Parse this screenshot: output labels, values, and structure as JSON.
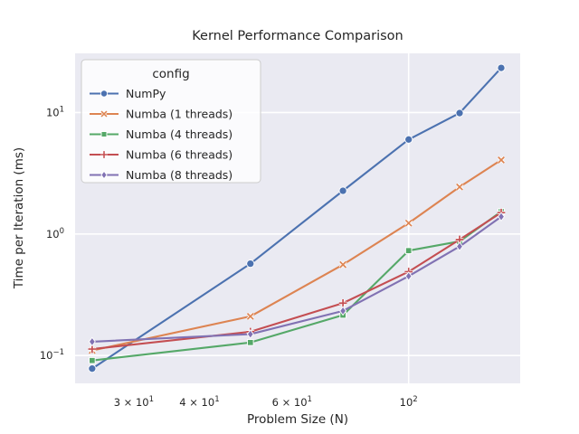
{
  "chart_data": {
    "type": "line",
    "title": "Kernel Performance Comparison",
    "xlabel": "Problem Size (N)",
    "ylabel": "Time per Iteration (ms)",
    "x_scale": "log",
    "y_scale": "log",
    "grid": "major",
    "x": [
      25,
      50,
      75,
      100,
      125,
      150
    ],
    "series": [
      {
        "name": "NumPy",
        "color": "#4C72B0",
        "marker": "circle",
        "values": [
          0.078,
          0.57,
          2.27,
          6.0,
          9.9,
          23.3
        ]
      },
      {
        "name": "Numba (1 threads)",
        "color": "#DD8452",
        "marker": "x",
        "values": [
          0.11,
          0.21,
          0.56,
          1.23,
          2.44,
          4.07
        ]
      },
      {
        "name": "Numba (4 threads)",
        "color": "#55A868",
        "marker": "square",
        "values": [
          0.091,
          0.128,
          0.215,
          0.73,
          0.87,
          1.53
        ]
      },
      {
        "name": "Numba (6 threads)",
        "color": "#C44E52",
        "marker": "plus",
        "values": [
          0.113,
          0.157,
          0.27,
          0.49,
          0.9,
          1.5
        ]
      },
      {
        "name": "Numba (8 threads)",
        "color": "#8172B3",
        "marker": "diamond",
        "values": [
          0.13,
          0.15,
          0.233,
          0.45,
          0.79,
          1.39
        ]
      }
    ],
    "legend": {
      "title": "config",
      "position": "upper left",
      "entries": [
        "NumPy",
        "Numba (1 threads)",
        "Numba (4 threads)",
        "Numba (6 threads)",
        "Numba (8 threads)"
      ]
    },
    "x_ticks": [
      {
        "text": "3 × 10",
        "sup": "1",
        "value": 30,
        "grid": false
      },
      {
        "text": "4 × 10",
        "sup": "1",
        "value": 40,
        "grid": false
      },
      {
        "text": "6 × 10",
        "sup": "1",
        "value": 60,
        "grid": false
      },
      {
        "text": "10",
        "sup": "2",
        "value": 100,
        "grid": true
      }
    ],
    "y_ticks": [
      {
        "text": "10",
        "sup": "1",
        "value": 10,
        "grid": true
      },
      {
        "text": "10",
        "sup": "0",
        "value": 1,
        "grid": true
      },
      {
        "text": "10",
        "sup": "−1",
        "value": 0.1,
        "grid": true
      }
    ],
    "x_range": [
      23.2,
      163
    ],
    "y_range": [
      0.059,
      30.7
    ],
    "colors": {
      "plot_bg": "#EAEAF2",
      "grid": "#FFFFFF",
      "text": "#262626",
      "legend_bg": "#FFFFFF",
      "legend_border": "#CCCCCC"
    }
  }
}
